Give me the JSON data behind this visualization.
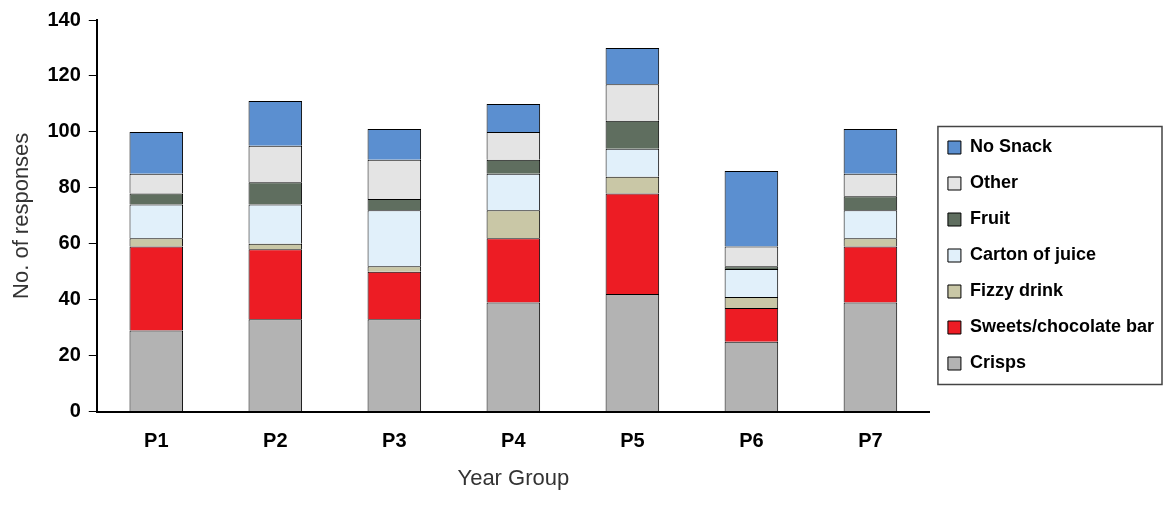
{
  "chart_data": {
    "type": "bar",
    "stacked": true,
    "xlabel": "Year Group",
    "ylabel": "No. of responses",
    "categories": [
      "P1",
      "P2",
      "P3",
      "P4",
      "P5",
      "P6",
      "P7"
    ],
    "series": [
      {
        "name": "Crisps",
        "color": "#b3b3b3",
        "values": [
          29,
          33,
          33,
          39,
          42,
          25,
          39
        ]
      },
      {
        "name": "Sweets/chocolate bar",
        "color": "#ed1c24",
        "values": [
          30,
          25,
          17,
          23,
          36,
          12,
          20
        ]
      },
      {
        "name": "Fizzy drink",
        "color": "#c9c7a6",
        "values": [
          3,
          2,
          2,
          10,
          6,
          4,
          3
        ]
      },
      {
        "name": "Carton of juice",
        "color": "#e1f0fa",
        "values": [
          12,
          14,
          20,
          13,
          10,
          10,
          10
        ]
      },
      {
        "name": "Fruit",
        "color": "#5f6e5f",
        "values": [
          4,
          8,
          4,
          5,
          10,
          1,
          5
        ]
      },
      {
        "name": "Other",
        "color": "#e4e4e4",
        "values": [
          7,
          13,
          14,
          10,
          13,
          7,
          8
        ]
      },
      {
        "name": "No Snack",
        "color": "#5b8fd0",
        "values": [
          15,
          16,
          11,
          10,
          13,
          27,
          16
        ]
      }
    ],
    "ylim": [
      0,
      140
    ],
    "yticks": [
      0,
      20,
      40,
      60,
      80,
      100,
      120,
      140
    ],
    "grid": false,
    "legend": "right"
  }
}
